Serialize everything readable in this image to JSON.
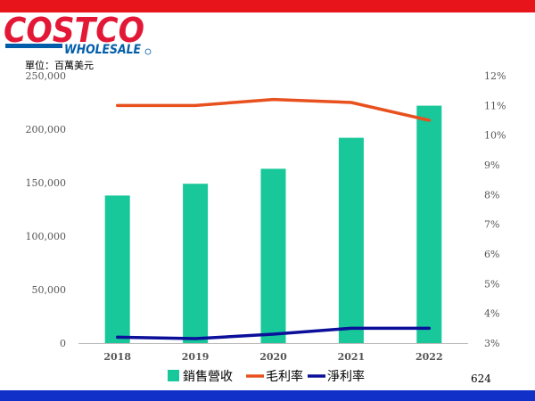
{
  "header": {
    "brand_top": "COSTCO",
    "brand_bottom": "WHOLESALE",
    "unit": "單位：百萬美元"
  },
  "page_number": "624",
  "colors": {
    "top_band": "#e8141b",
    "bottom_band": "#1030c8",
    "brand_red": "#e31837",
    "brand_blue": "#005daa",
    "revenue": "#18c79a",
    "gross_margin": "#e8501e",
    "net_margin": "#0b0f9a"
  },
  "chart_data": {
    "type": "bar",
    "categories": [
      "2018",
      "2019",
      "2020",
      "2021",
      "2022"
    ],
    "series": [
      {
        "name": "銷售營收",
        "type": "bar",
        "axis": "left",
        "values": [
          138000,
          149000,
          163000,
          192000,
          222000
        ]
      },
      {
        "name": "毛利率",
        "type": "line",
        "axis": "right",
        "values": [
          11.0,
          11.0,
          11.2,
          11.1,
          10.5
        ]
      },
      {
        "name": "淨利率",
        "type": "line",
        "axis": "right",
        "values": [
          3.2,
          3.15,
          3.3,
          3.5,
          3.5
        ]
      }
    ],
    "y_left": {
      "min": 0,
      "max": 250000,
      "ticks": [
        0,
        50000,
        100000,
        150000,
        200000,
        250000
      ],
      "tick_labels": [
        "0",
        "50,000",
        "100,000",
        "150,000",
        "200,000",
        "250,000"
      ]
    },
    "y_right": {
      "min": 3,
      "max": 12,
      "ticks": [
        3,
        4,
        5,
        6,
        7,
        8,
        9,
        10,
        11,
        12
      ],
      "tick_labels": [
        "3%",
        "4%",
        "5%",
        "6%",
        "7%",
        "8%",
        "9%",
        "10%",
        "11%",
        "12%"
      ]
    },
    "grid": false,
    "legend_position": "bottom"
  }
}
